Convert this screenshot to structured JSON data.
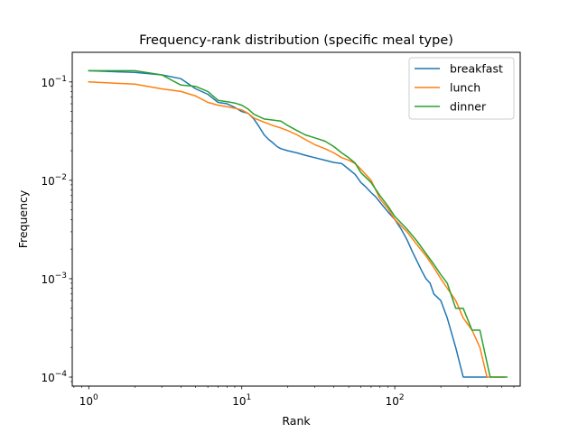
{
  "chart_data": {
    "type": "line",
    "title": "Frequency-rank distribution (specific meal type)",
    "xlabel": "Rank",
    "ylabel": "Frequency",
    "xscale": "log",
    "yscale": "log",
    "xlim": [
      0.78,
      660
    ],
    "ylim": [
      8.1e-05,
      0.2
    ],
    "x_ticks": [
      {
        "value": 1,
        "base": "10",
        "exp": "0"
      },
      {
        "value": 10,
        "base": "10",
        "exp": "1"
      },
      {
        "value": 100,
        "base": "10",
        "exp": "2"
      }
    ],
    "y_ticks": [
      {
        "value": 0.0001,
        "base": "10",
        "exp": "−4"
      },
      {
        "value": 0.001,
        "base": "10",
        "exp": "−3"
      },
      {
        "value": 0.01,
        "base": "10",
        "exp": "−2"
      },
      {
        "value": 0.1,
        "base": "10",
        "exp": "−1"
      }
    ],
    "legend_position": "top-right",
    "grid": false,
    "series": [
      {
        "name": "breakfast",
        "color": "#1f77b4",
        "points": [
          [
            1,
            0.13
          ],
          [
            2,
            0.125
          ],
          [
            3,
            0.118
          ],
          [
            4,
            0.108
          ],
          [
            5,
            0.085
          ],
          [
            6,
            0.075
          ],
          [
            7,
            0.062
          ],
          [
            8,
            0.06
          ],
          [
            9,
            0.055
          ],
          [
            10,
            0.05
          ],
          [
            11,
            0.048
          ],
          [
            12,
            0.042
          ],
          [
            13,
            0.035
          ],
          [
            14,
            0.029
          ],
          [
            15,
            0.026
          ],
          [
            16,
            0.024
          ],
          [
            17,
            0.022
          ],
          [
            18,
            0.021
          ],
          [
            20,
            0.02
          ],
          [
            23,
            0.019
          ],
          [
            26,
            0.018
          ],
          [
            30,
            0.017
          ],
          [
            35,
            0.016
          ],
          [
            40,
            0.0152
          ],
          [
            45,
            0.0148
          ],
          [
            50,
            0.013
          ],
          [
            55,
            0.0115
          ],
          [
            60,
            0.0095
          ],
          [
            65,
            0.0085
          ],
          [
            70,
            0.0075
          ],
          [
            75,
            0.0068
          ],
          [
            80,
            0.006
          ],
          [
            90,
            0.0048
          ],
          [
            100,
            0.004
          ],
          [
            110,
            0.0032
          ],
          [
            120,
            0.0025
          ],
          [
            130,
            0.0019
          ],
          [
            140,
            0.0015
          ],
          [
            150,
            0.0012
          ],
          [
            160,
            0.001
          ],
          [
            170,
            0.0009
          ],
          [
            180,
            0.0007
          ],
          [
            200,
            0.0006
          ],
          [
            220,
            0.0004
          ],
          [
            250,
            0.0002
          ],
          [
            280,
            0.0001
          ],
          [
            400,
            0.0001
          ]
        ]
      },
      {
        "name": "lunch",
        "color": "#ff7f0e",
        "points": [
          [
            1,
            0.1
          ],
          [
            2,
            0.095
          ],
          [
            3,
            0.085
          ],
          [
            4,
            0.08
          ],
          [
            5,
            0.072
          ],
          [
            6,
            0.062
          ],
          [
            7,
            0.058
          ],
          [
            8,
            0.056
          ],
          [
            9,
            0.054
          ],
          [
            10,
            0.052
          ],
          [
            11,
            0.048
          ],
          [
            12,
            0.043
          ],
          [
            14,
            0.039
          ],
          [
            16,
            0.036
          ],
          [
            18,
            0.034
          ],
          [
            20,
            0.032
          ],
          [
            23,
            0.029
          ],
          [
            26,
            0.026
          ],
          [
            30,
            0.023
          ],
          [
            35,
            0.021
          ],
          [
            40,
            0.019
          ],
          [
            45,
            0.017
          ],
          [
            50,
            0.016
          ],
          [
            55,
            0.0148
          ],
          [
            60,
            0.013
          ],
          [
            70,
            0.01
          ],
          [
            80,
            0.0065
          ],
          [
            90,
            0.0052
          ],
          [
            100,
            0.004
          ],
          [
            120,
            0.003
          ],
          [
            140,
            0.0022
          ],
          [
            160,
            0.0017
          ],
          [
            180,
            0.0013
          ],
          [
            200,
            0.001
          ],
          [
            220,
            0.0008
          ],
          [
            250,
            0.0006
          ],
          [
            280,
            0.0004
          ],
          [
            320,
            0.0003
          ],
          [
            360,
            0.0002
          ],
          [
            400,
            0.0001
          ],
          [
            520,
            0.0001
          ]
        ]
      },
      {
        "name": "dinner",
        "color": "#2ca02c",
        "points": [
          [
            1,
            0.13
          ],
          [
            2,
            0.13
          ],
          [
            3,
            0.118
          ],
          [
            4,
            0.093
          ],
          [
            5,
            0.09
          ],
          [
            6,
            0.08
          ],
          [
            7,
            0.065
          ],
          [
            8,
            0.063
          ],
          [
            9,
            0.061
          ],
          [
            10,
            0.058
          ],
          [
            11,
            0.053
          ],
          [
            12,
            0.047
          ],
          [
            14,
            0.042
          ],
          [
            16,
            0.041
          ],
          [
            18,
            0.04
          ],
          [
            20,
            0.036
          ],
          [
            23,
            0.032
          ],
          [
            26,
            0.029
          ],
          [
            30,
            0.027
          ],
          [
            35,
            0.025
          ],
          [
            40,
            0.022
          ],
          [
            45,
            0.019
          ],
          [
            50,
            0.017
          ],
          [
            55,
            0.015
          ],
          [
            60,
            0.012
          ],
          [
            70,
            0.0095
          ],
          [
            80,
            0.007
          ],
          [
            90,
            0.0055
          ],
          [
            100,
            0.0043
          ],
          [
            120,
            0.0032
          ],
          [
            140,
            0.0024
          ],
          [
            160,
            0.0018
          ],
          [
            180,
            0.0014
          ],
          [
            200,
            0.0011
          ],
          [
            220,
            0.0009
          ],
          [
            250,
            0.0005
          ],
          [
            280,
            0.0005
          ],
          [
            320,
            0.0003
          ],
          [
            360,
            0.0003
          ],
          [
            420,
            0.0001
          ],
          [
            540,
            0.0001
          ]
        ]
      }
    ]
  }
}
